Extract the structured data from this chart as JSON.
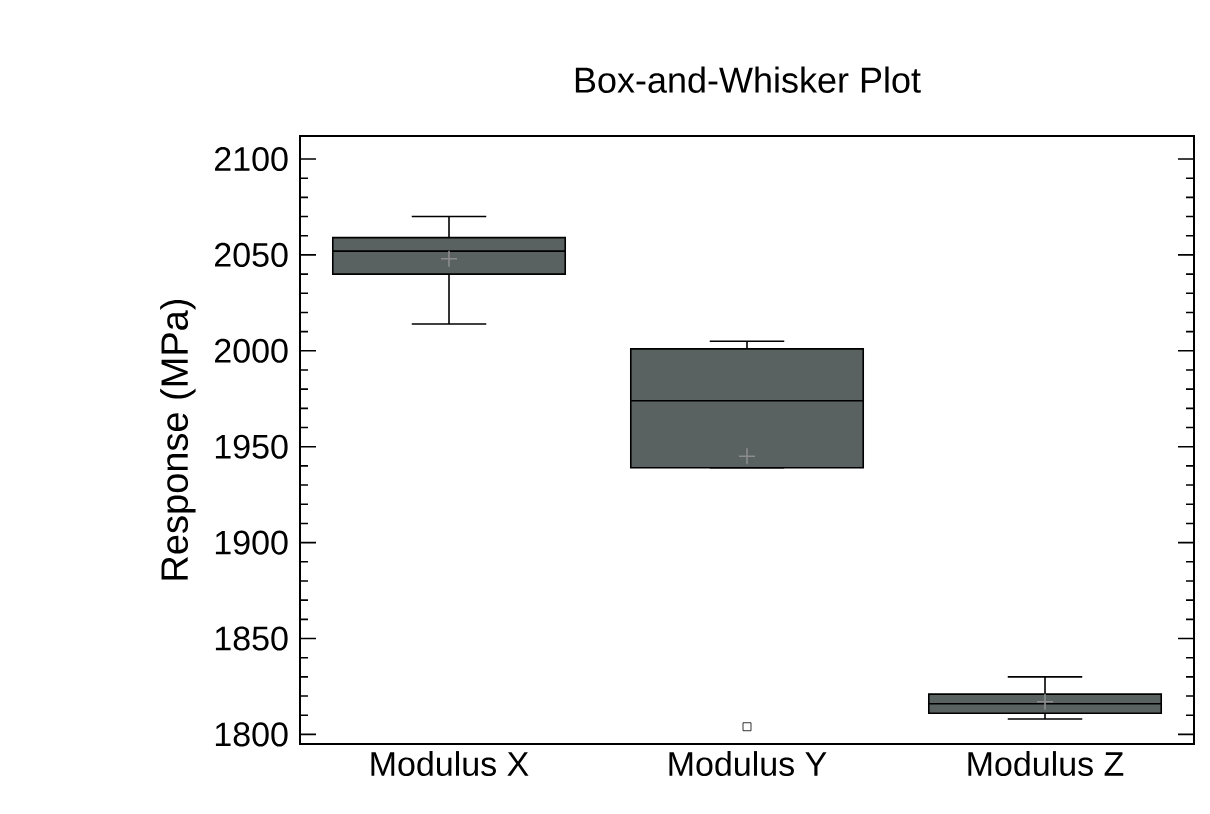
{
  "chart_data": {
    "type": "box",
    "title": "Box-and-Whisker Plot",
    "ylabel": "Response (MPa)",
    "categories": [
      "Modulus X",
      "Modulus Y",
      "Modulus Z"
    ],
    "color": "#5a6161",
    "boxes": [
      {
        "low": 2014,
        "q1": 2040,
        "median": 2052,
        "q3": 2059,
        "high": 2070,
        "mean": 2048
      },
      {
        "low": 1939,
        "q1": 1939,
        "median": 1974,
        "q3": 2001,
        "high": 2005,
        "mean": 1945,
        "outliers": [
          1804
        ]
      },
      {
        "low": 1808,
        "q1": 1811,
        "median": 1816,
        "q3": 1821,
        "high": 1830,
        "mean": 1817
      }
    ],
    "ylim": [
      1795,
      2112
    ],
    "yticks": [
      1800,
      1850,
      1900,
      1950,
      2000,
      2050,
      2100
    ]
  }
}
